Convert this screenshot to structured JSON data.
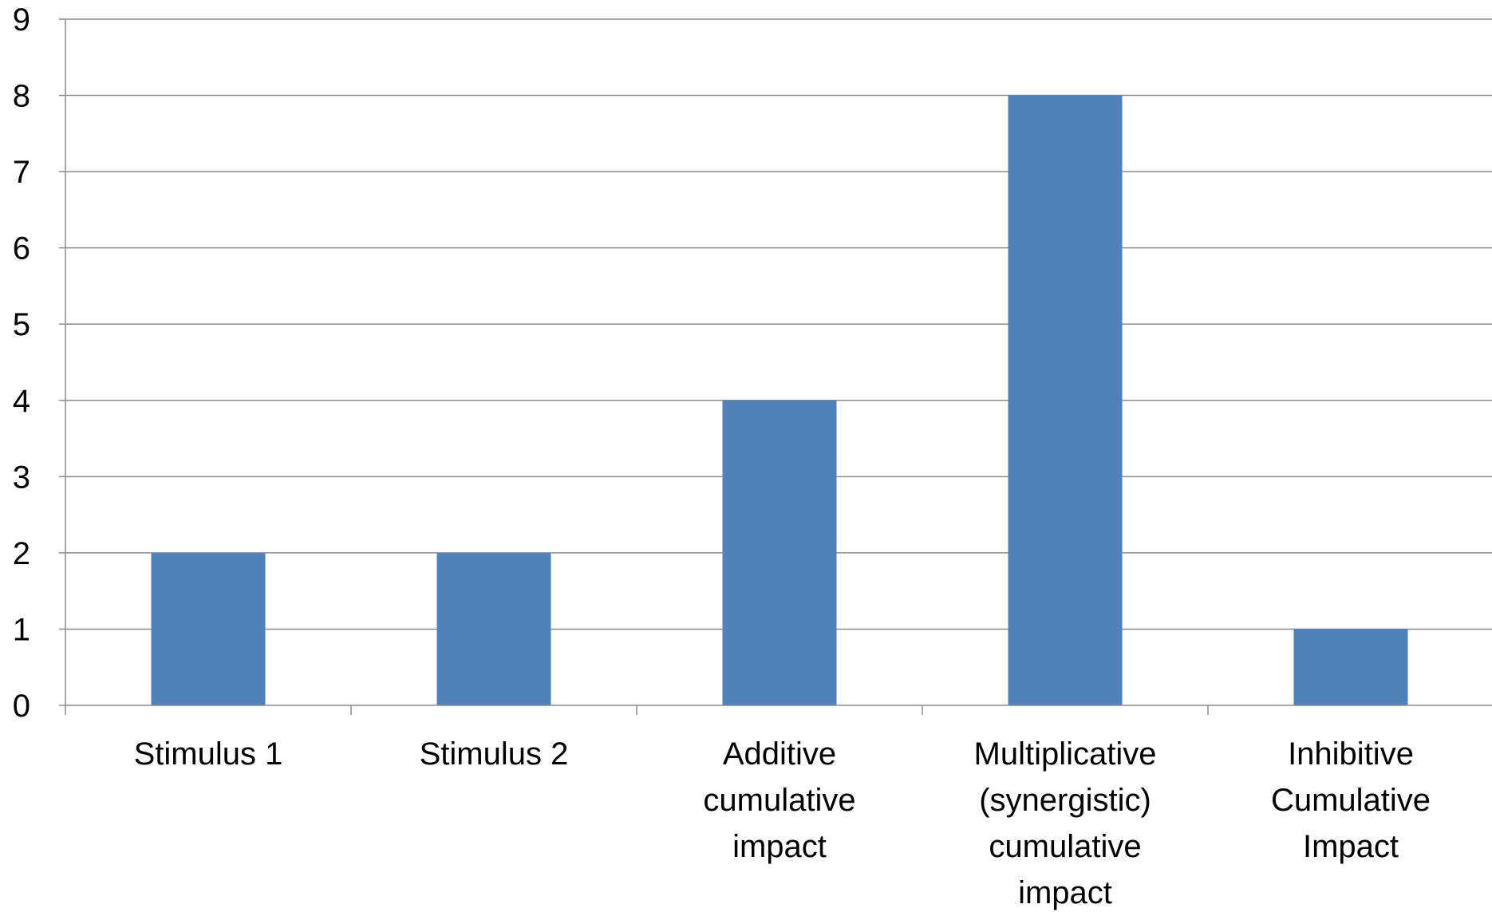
{
  "chart_data": {
    "type": "bar",
    "categories": [
      "Stimulus 1",
      "Stimulus 2",
      "Additive cumulative impact",
      "Multiplicative (synergistic) cumulative impact",
      "Inhibitive Cumulative Impact"
    ],
    "category_label_lines": [
      [
        "Stimulus 1"
      ],
      [
        "Stimulus 2"
      ],
      [
        "Additive",
        "cumulative",
        "impact"
      ],
      [
        "Multiplicative",
        "(synergistic)",
        "cumulative",
        "impact"
      ],
      [
        "Inhibitive",
        "Cumulative",
        "Impact"
      ]
    ],
    "values": [
      2,
      2,
      4,
      8,
      1
    ],
    "title": "",
    "xlabel": "",
    "ylabel": "",
    "ylim": [
      0,
      9
    ],
    "yticks": [
      0,
      1,
      2,
      3,
      4,
      5,
      6,
      7,
      8,
      9
    ],
    "grid": true,
    "legend": "none",
    "colors": {
      "bar": "#4F81BD",
      "grid": "#8C8C8C",
      "axis": "#8C8C8C",
      "text": "#000000"
    }
  }
}
